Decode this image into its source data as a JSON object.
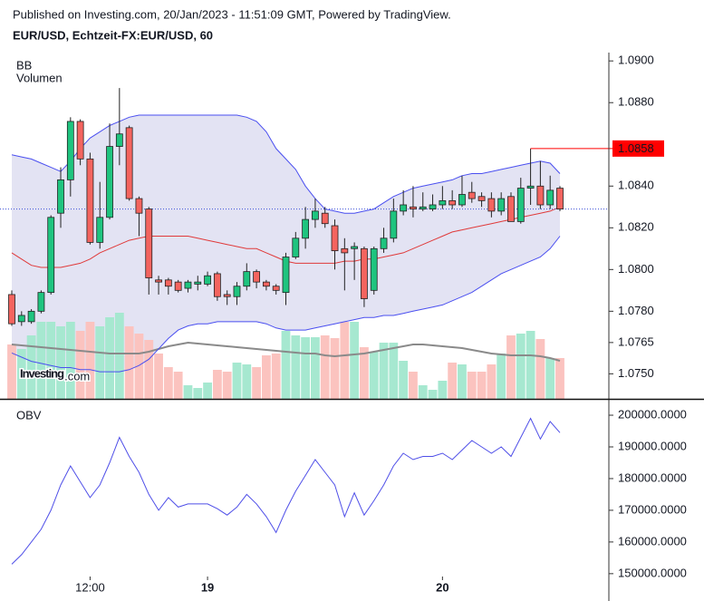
{
  "header": {
    "published": "Published on Investing.com, 20/Jan/2023 - 11:51:09 GMT, Powered by TradingView.",
    "logo": {
      "name": "Investing",
      "suffix": ".com"
    }
  },
  "chart_data": [
    {
      "type": "candlestick",
      "title": "EUR/USD, Echtzeit-FX:EUR/USD, 60",
      "categories": [
        null,
        null,
        null,
        null,
        null,
        null,
        null,
        null,
        "12:00",
        null,
        null,
        null,
        null,
        null,
        null,
        null,
        null,
        null,
        null,
        null,
        "19",
        null,
        null,
        null,
        null,
        null,
        null,
        null,
        null,
        null,
        null,
        null,
        null,
        null,
        null,
        null,
        null,
        null,
        null,
        null,
        null,
        null,
        null,
        null,
        "20",
        null,
        null,
        null,
        null,
        null,
        null,
        null,
        null,
        null,
        null,
        null,
        null
      ],
      "open": [
        1.0788,
        1.0775,
        1.0775,
        1.078,
        1.0789,
        1.0827,
        1.0843,
        1.0871,
        1.0853,
        1.0813,
        1.0825,
        1.0859,
        1.0868,
        1.0834,
        1.0829,
        1.0795,
        1.0795,
        1.0794,
        1.0791,
        1.0793,
        1.0793,
        1.0798,
        1.0788,
        1.0787,
        1.0792,
        1.0799,
        1.0794,
        1.0792,
        1.0789,
        1.0806,
        1.0815,
        1.0824,
        1.0827,
        1.0821,
        1.081,
        1.081,
        1.081,
        1.079,
        1.081,
        1.0815,
        1.0828,
        1.083,
        1.0829,
        1.0829,
        1.0831,
        1.0833,
        1.0831,
        1.0837,
        1.0835,
        1.0834,
        1.0828,
        1.0835,
        1.0823,
        1.0839,
        1.084,
        1.0831,
        1.0839
      ],
      "high": [
        1.079,
        1.078,
        1.0781,
        1.079,
        1.0826,
        1.0849,
        1.0873,
        1.0872,
        1.0856,
        1.0842,
        1.087,
        1.0887,
        1.0869,
        1.0835,
        1.083,
        1.0797,
        1.0796,
        1.0795,
        1.0795,
        1.0797,
        1.0799,
        1.0799,
        1.079,
        1.0794,
        1.0803,
        1.08,
        1.0795,
        1.0793,
        1.0808,
        1.0818,
        1.083,
        1.0834,
        1.083,
        1.0824,
        1.0815,
        1.0813,
        1.0811,
        1.0811,
        1.082,
        1.0834,
        1.0838,
        1.084,
        1.0837,
        1.0836,
        1.084,
        1.0838,
        1.0845,
        1.0842,
        1.0837,
        1.0837,
        1.0837,
        1.0837,
        1.0844,
        1.0858,
        1.0852,
        1.0845,
        1.084
      ],
      "low": [
        1.0773,
        1.0773,
        1.0774,
        1.0779,
        1.0788,
        1.082,
        1.0835,
        1.085,
        1.0812,
        1.081,
        1.0824,
        1.085,
        1.0833,
        1.0816,
        1.0788,
        1.0788,
        1.0788,
        1.0789,
        1.0789,
        1.079,
        1.0792,
        1.0785,
        1.0783,
        1.0783,
        1.079,
        1.0791,
        1.079,
        1.0788,
        1.0783,
        1.0805,
        1.081,
        1.082,
        1.082,
        1.08,
        1.079,
        1.0795,
        1.0782,
        1.0788,
        1.0808,
        1.0813,
        1.0826,
        1.0825,
        1.0828,
        1.0828,
        1.0829,
        1.0829,
        1.083,
        1.0832,
        1.083,
        1.0825,
        1.0826,
        1.0823,
        1.0822,
        1.0831,
        1.0829,
        1.0829,
        1.0828
      ],
      "close": [
        1.0774,
        1.0778,
        1.078,
        1.0789,
        1.0825,
        1.0843,
        1.0871,
        1.0853,
        1.0813,
        1.0825,
        1.0859,
        1.0865,
        1.0834,
        1.0827,
        1.0796,
        1.0794,
        1.0792,
        1.079,
        1.0794,
        1.0794,
        1.0797,
        1.0787,
        1.0787,
        1.0792,
        1.0799,
        1.0794,
        1.0792,
        1.079,
        1.0806,
        1.0815,
        1.0824,
        1.0828,
        1.0822,
        1.0809,
        1.0808,
        1.0811,
        1.0786,
        1.081,
        1.0815,
        1.0828,
        1.0831,
        1.0829,
        1.083,
        1.0831,
        1.0833,
        1.0831,
        1.0836,
        1.0834,
        1.0833,
        1.0828,
        1.0834,
        1.0823,
        1.0839,
        1.084,
        1.0831,
        1.0838,
        1.0829
      ],
      "up_color": "#1fc47f",
      "down_color": "#f4645f",
      "ylim": [
        1.0738,
        1.0904
      ],
      "yticks": [
        {
          "value": 1.09,
          "label": "1.0900"
        },
        {
          "value": 1.088,
          "label": "1.0880"
        },
        {
          "value": 1.084,
          "label": "1.0840"
        },
        {
          "value": 1.082,
          "label": "1.0820"
        },
        {
          "value": 1.08,
          "label": "1.0800"
        },
        {
          "value": 1.078,
          "label": "1.0780"
        },
        {
          "value": 1.0765,
          "label": "1.0765"
        },
        {
          "value": 1.075,
          "label": "1.0750"
        }
      ],
      "price_line": 1.0858,
      "price_line_color": "#ff0000",
      "bb": {
        "label": "BB",
        "color": "#4a4ff0",
        "middle_color": "#e03a3a",
        "fill": "#e3e3f3",
        "upper": [
          1.0855,
          1.0854,
          1.0853,
          1.0851,
          1.0849,
          1.0847,
          1.0852,
          1.0858,
          1.0863,
          1.0866,
          1.0869,
          1.0871,
          1.0873,
          1.0874,
          1.0874,
          1.0874,
          1.0874,
          1.0874,
          1.0874,
          1.0874,
          1.0874,
          1.0874,
          1.0874,
          1.0874,
          1.0873,
          1.0871,
          1.0866,
          1.0858,
          1.0853,
          1.0848,
          1.084,
          1.0834,
          1.0829,
          1.0828,
          1.0827,
          1.0827,
          1.0828,
          1.0829,
          1.0832,
          1.0835,
          1.0837,
          1.0839,
          1.084,
          1.0841,
          1.0842,
          1.0843,
          1.0845,
          1.0846,
          1.0846,
          1.0847,
          1.0848,
          1.0849,
          1.085,
          1.0851,
          1.0852,
          1.0851,
          1.0846
        ],
        "middle": [
          1.0808,
          1.0805,
          1.0802,
          1.0801,
          1.0801,
          1.0801,
          1.0802,
          1.0803,
          1.0805,
          1.0808,
          1.081,
          1.0812,
          1.0814,
          1.0815,
          1.0816,
          1.0816,
          1.0816,
          1.0816,
          1.0816,
          1.0815,
          1.0814,
          1.0813,
          1.0812,
          1.0811,
          1.081,
          1.081,
          1.0808,
          1.0806,
          1.0804,
          1.0803,
          1.0803,
          1.0803,
          1.0803,
          1.0803,
          1.0804,
          1.0804,
          1.0805,
          1.0805,
          1.0806,
          1.0807,
          1.0808,
          1.081,
          1.0812,
          1.0814,
          1.0816,
          1.0818,
          1.0819,
          1.082,
          1.0821,
          1.0822,
          1.0823,
          1.0824,
          1.0825,
          1.0826,
          1.0827,
          1.0828,
          1.083
        ],
        "lower": [
          1.076,
          1.0758,
          1.0756,
          1.0755,
          1.0754,
          1.0753,
          1.0753,
          1.0752,
          1.0752,
          1.0751,
          1.0751,
          1.0751,
          1.0752,
          1.0754,
          1.0757,
          1.0762,
          1.0767,
          1.0771,
          1.0773,
          1.0774,
          1.0774,
          1.0775,
          1.0775,
          1.0775,
          1.0775,
          1.0775,
          1.0774,
          1.0772,
          1.0771,
          1.0771,
          1.0771,
          1.0772,
          1.0773,
          1.0774,
          1.0775,
          1.0776,
          1.0777,
          1.0777,
          1.0778,
          1.0778,
          1.0779,
          1.078,
          1.0781,
          1.0782,
          1.0783,
          1.0785,
          1.0787,
          1.0789,
          1.0792,
          1.0795,
          1.0798,
          1.08,
          1.0802,
          1.0804,
          1.0806,
          1.081,
          1.0816
        ]
      },
      "volume": {
        "label": "Volumen",
        "up_color": "#a6e8d0",
        "down_color": "#fbc3bf",
        "ma_color": "#8a8a8a",
        "values": [
          60,
          55,
          70,
          85,
          85,
          80,
          85,
          75,
          85,
          80,
          90,
          95,
          80,
          72,
          65,
          50,
          35,
          30,
          15,
          12,
          18,
          32,
          30,
          40,
          38,
          35,
          48,
          50,
          75,
          70,
          68,
          68,
          70,
          67,
          85,
          85,
          57,
          52,
          62,
          62,
          42,
          30,
          15,
          10,
          20,
          40,
          38,
          30,
          30,
          38,
          50,
          70,
          72,
          75,
          66,
          45,
          45
        ],
        "ma": [
          60,
          59,
          58,
          57,
          56,
          55,
          54,
          53,
          52,
          51,
          50,
          50,
          50,
          50,
          52,
          55,
          58,
          60,
          62,
          61,
          60,
          59,
          58,
          57,
          56,
          55,
          54,
          53,
          52,
          51,
          50,
          50,
          48,
          47,
          48,
          49,
          50,
          52,
          54,
          56,
          58,
          60,
          60,
          59,
          58,
          57,
          56,
          54,
          52,
          50,
          49,
          48,
          48,
          48,
          47,
          45,
          42
        ]
      }
    },
    {
      "type": "line",
      "title": "OBV",
      "color": "#4f4fe8",
      "values": [
        153000,
        156000,
        160000,
        164000,
        170000,
        178000,
        184000,
        179000,
        174000,
        178000,
        185000,
        193000,
        187000,
        182000,
        175000,
        170000,
        174000,
        171000,
        172000,
        172000,
        172000,
        170500,
        168500,
        171000,
        175000,
        172000,
        168000,
        163000,
        170000,
        176000,
        181000,
        186000,
        182000,
        178000,
        168000,
        175500,
        168500,
        173000,
        178000,
        184000,
        188000,
        186000,
        187000,
        187000,
        188000,
        186000,
        189000,
        192000,
        190000,
        188000,
        190000,
        187000,
        193000,
        199000,
        192500,
        198000,
        194500
      ],
      "ylim": [
        149100,
        204300
      ],
      "yticks": [
        {
          "value": 200000,
          "label": "200000.0000"
        },
        {
          "value": 190000,
          "label": "190000.0000"
        },
        {
          "value": 180000,
          "label": "180000.0000"
        },
        {
          "value": 170000,
          "label": "170000.0000"
        },
        {
          "value": 160000,
          "label": "160000.0000"
        },
        {
          "value": 150000,
          "label": "150000.0000"
        }
      ]
    }
  ]
}
